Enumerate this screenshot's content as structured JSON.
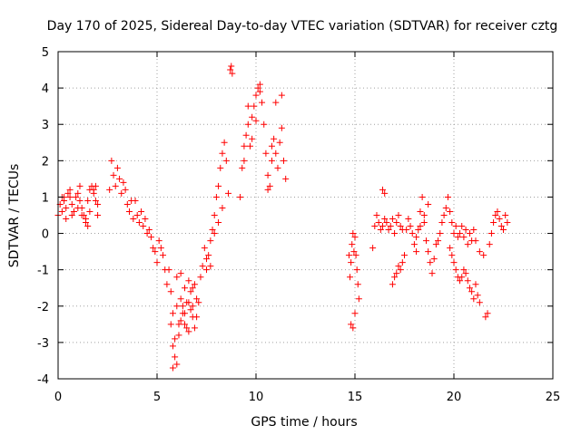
{
  "chart_data": {
    "type": "scatter",
    "title": "Day 170 of 2025, Sidereal Day-to-day VTEC variation (SDTVAR) for receiver cztg",
    "xlabel": "GPS time / hours",
    "ylabel": "SDTVAR / TECUs",
    "xlim": [
      0,
      25
    ],
    "ylim": [
      -4,
      5
    ],
    "xticks": [
      0,
      5,
      10,
      15,
      20,
      25
    ],
    "yticks": [
      -4,
      -3,
      -2,
      -1,
      0,
      1,
      2,
      3,
      4,
      5
    ],
    "grid": true,
    "marker": "+",
    "color": "#ff0000",
    "series": [
      {
        "name": "SDTVAR",
        "x": [
          0.0,
          0.1,
          0.2,
          0.3,
          0.4,
          0.5,
          0.6,
          0.7,
          0.8,
          0.9,
          1.0,
          1.1,
          1.2,
          1.3,
          1.4,
          1.5,
          1.6,
          1.7,
          1.8,
          1.9,
          2.0,
          0.2,
          0.4,
          0.6,
          0.8,
          1.0,
          1.2,
          1.4,
          1.6,
          1.8,
          2.0,
          0.3,
          0.7,
          1.1,
          1.5,
          1.9,
          2.6,
          2.7,
          2.8,
          2.9,
          3.0,
          3.1,
          3.2,
          3.3,
          3.4,
          3.5,
          3.6,
          3.7,
          3.8,
          3.9,
          4.0,
          4.1,
          4.2,
          4.3,
          4.4,
          4.5,
          4.6,
          4.7,
          4.8,
          4.9,
          5.0,
          5.1,
          5.2,
          5.3,
          5.4,
          5.5,
          5.6,
          5.7,
          5.8,
          5.9,
          6.0,
          6.1,
          6.2,
          6.3,
          6.4,
          6.5,
          6.6,
          6.7,
          6.8,
          6.9,
          7.0,
          5.7,
          5.8,
          5.9,
          6.0,
          6.1,
          6.2,
          6.3,
          6.4,
          6.5,
          6.6,
          6.7,
          6.8,
          6.9,
          5.8,
          6.0,
          6.2,
          6.4,
          6.6,
          6.8,
          7.0,
          7.1,
          7.2,
          7.3,
          7.4,
          7.5,
          7.6,
          7.7,
          7.8,
          7.9,
          8.0,
          8.1,
          8.2,
          8.3,
          8.4,
          8.5,
          8.6,
          7.5,
          7.7,
          7.9,
          8.1,
          8.3,
          8.7,
          8.75,
          8.8,
          9.2,
          9.3,
          9.4,
          9.5,
          9.6,
          9.7,
          9.8,
          9.9,
          10.0,
          10.1,
          10.2,
          10.3,
          9.4,
          9.6,
          9.8,
          10.0,
          10.2,
          10.4,
          10.5,
          10.6,
          10.7,
          10.8,
          10.9,
          11.0,
          11.1,
          11.2,
          11.3,
          11.4,
          11.5,
          10.6,
          10.8,
          11.0,
          11.3,
          14.7,
          14.75,
          14.8,
          14.85,
          14.9,
          14.95,
          15.0,
          15.05,
          15.1,
          15.15,
          15.2,
          14.8,
          14.9,
          15.0,
          15.9,
          16.0,
          16.1,
          16.2,
          16.3,
          16.4,
          16.5,
          16.6,
          16.7,
          16.8,
          16.9,
          17.0,
          17.1,
          17.2,
          17.3,
          17.4,
          16.4,
          16.5,
          16.9,
          17.0,
          17.1,
          17.2,
          17.3,
          17.4,
          17.5,
          17.6,
          17.7,
          17.8,
          17.9,
          18.0,
          18.1,
          18.2,
          18.3,
          18.4,
          18.5,
          18.6,
          18.7,
          18.8,
          18.9,
          19.0,
          19.1,
          18.1,
          18.3,
          18.5,
          18.7,
          19.2,
          19.3,
          19.4,
          19.5,
          19.6,
          19.7,
          19.8,
          19.9,
          20.0,
          20.1,
          20.2,
          20.3,
          20.4,
          20.5,
          20.6,
          20.7,
          20.8,
          20.9,
          21.0,
          19.8,
          19.9,
          20.0,
          20.1,
          20.2,
          20.3,
          20.4,
          20.5,
          20.6,
          20.7,
          20.8,
          20.9,
          21.0,
          21.1,
          21.2,
          21.3,
          21.1,
          21.3,
          21.5,
          21.6,
          21.7,
          21.8,
          21.9,
          22.0,
          22.1,
          22.2,
          22.3,
          22.4,
          22.5,
          22.6,
          22.7
        ],
        "y": [
          0.5,
          0.8,
          1.0,
          0.9,
          0.7,
          1.1,
          1.2,
          0.8,
          0.6,
          1.0,
          1.1,
          0.9,
          0.7,
          0.5,
          0.4,
          0.9,
          1.2,
          1.3,
          1.1,
          0.9,
          0.8,
          0.6,
          0.4,
          1.0,
          0.6,
          0.7,
          0.5,
          0.3,
          0.6,
          1.2,
          0.5,
          1.0,
          0.5,
          1.3,
          0.2,
          1.3,
          1.2,
          2.0,
          1.6,
          1.3,
          1.8,
          1.5,
          1.1,
          1.4,
          1.2,
          0.8,
          0.6,
          0.9,
          0.4,
          0.9,
          0.5,
          0.3,
          0.6,
          0.2,
          0.4,
          0.0,
          0.1,
          -0.1,
          -0.4,
          -0.5,
          -0.8,
          -0.2,
          -0.4,
          -0.6,
          -1.0,
          -1.4,
          -1.0,
          -1.6,
          -2.2,
          -2.9,
          -3.6,
          -2.5,
          -1.8,
          -2.0,
          -1.5,
          -2.6,
          -1.9,
          -1.6,
          -2.3,
          -1.4,
          -1.8,
          -2.5,
          -3.1,
          -3.4,
          -2.0,
          -2.8,
          -2.4,
          -2.2,
          -2.5,
          -1.9,
          -2.7,
          -2.1,
          -1.5,
          -2.6,
          -3.7,
          -1.2,
          -1.1,
          -2.2,
          -1.3,
          -2.0,
          -2.3,
          -1.9,
          -1.2,
          -0.9,
          -0.4,
          -1.0,
          -0.6,
          -0.2,
          0.1,
          0.5,
          1.0,
          1.3,
          1.8,
          2.2,
          2.5,
          2.0,
          1.1,
          -0.7,
          -0.9,
          0.0,
          0.3,
          0.7,
          4.5,
          4.6,
          4.4,
          1.0,
          1.8,
          2.4,
          2.7,
          3.0,
          2.4,
          3.2,
          3.5,
          3.8,
          4.0,
          4.1,
          3.6,
          2.0,
          3.5,
          2.6,
          3.1,
          3.9,
          3.0,
          2.2,
          1.6,
          1.3,
          2.0,
          2.6,
          2.2,
          1.8,
          2.5,
          2.9,
          2.0,
          1.5,
          1.2,
          2.4,
          3.6,
          3.8,
          -0.6,
          -1.2,
          -0.8,
          -0.3,
          0.0,
          -0.5,
          -0.1,
          -0.6,
          -1.0,
          -1.4,
          -1.8,
          -2.5,
          -2.6,
          -2.2,
          -0.4,
          0.2,
          0.5,
          0.3,
          0.1,
          0.2,
          0.4,
          0.3,
          0.1,
          0.2,
          0.4,
          0.0,
          0.3,
          0.5,
          0.2,
          0.1,
          1.2,
          1.1,
          -1.4,
          -1.2,
          -1.1,
          -0.9,
          -1.0,
          -0.8,
          -0.6,
          0.1,
          0.4,
          0.2,
          0.0,
          -0.3,
          -0.5,
          0.1,
          0.6,
          1.0,
          0.3,
          -0.2,
          -0.5,
          -0.8,
          -1.1,
          -0.7,
          -0.3,
          -0.1,
          0.2,
          0.5,
          0.8,
          -0.2,
          0.0,
          0.3,
          0.5,
          0.7,
          1.0,
          0.6,
          0.3,
          0.0,
          0.2,
          -0.1,
          0.0,
          0.2,
          -0.1,
          0.1,
          -0.3,
          0.0,
          -0.2,
          0.1,
          -0.4,
          -0.6,
          -0.8,
          -1.0,
          -1.2,
          -1.3,
          -1.2,
          -1.0,
          -1.1,
          -1.3,
          -1.5,
          -1.6,
          -1.8,
          -1.4,
          -1.7,
          -1.9,
          -0.2,
          -0.5,
          -0.6,
          -2.3,
          -2.2,
          -0.3,
          0.0,
          0.3,
          0.5,
          0.6,
          0.4,
          0.2,
          0.1,
          0.5,
          0.3
        ]
      }
    ]
  }
}
